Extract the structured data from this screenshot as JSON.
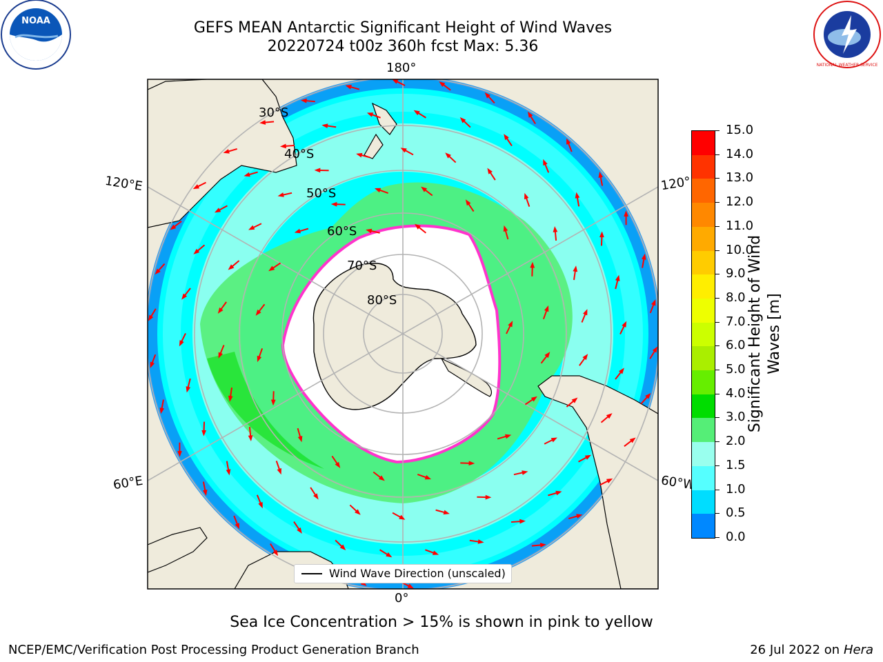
{
  "header": {
    "title_line1": "GEFS MEAN Antarctic Significant Height of Wind Waves",
    "title_line2": "20220724 t00z 360h fcst   Max: 5.36"
  },
  "logos": {
    "left_text": "NOAA",
    "right_text": "NATIONAL WEATHER SERVICE"
  },
  "map": {
    "longitude_labels": {
      "top": "180°",
      "bottom": "0°",
      "upper_left": "120°E",
      "lower_left": "60°E",
      "upper_right": "120°",
      "lower_right": "60°W"
    },
    "latitude_labels": [
      "30°S",
      "40°S",
      "50°S",
      "60°S",
      "70°S",
      "80°S"
    ],
    "legend_label": "Wind Wave Direction (unscaled)"
  },
  "colorbar": {
    "label_line1": "Significant Height of Wind",
    "label_line2": "Waves [m]",
    "ticks": [
      "15.0",
      "14.0",
      "13.0",
      "12.0",
      "11.0",
      "10.0",
      "9.0",
      "8.0",
      "7.0",
      "6.0",
      "5.0",
      "4.0",
      "3.0",
      "2.0",
      "1.5",
      "1.0",
      "0.5",
      "0.0"
    ],
    "colors": [
      "#ff0000",
      "#ff3300",
      "#ff6600",
      "#ff8800",
      "#ffaa00",
      "#ffcc00",
      "#ffee00",
      "#eeff00",
      "#ccff00",
      "#aaee00",
      "#66ee00",
      "#00dd00",
      "#55ee77",
      "#99ffee",
      "#55ffff",
      "#00ddff",
      "#0088ff",
      "#0000ff"
    ]
  },
  "notes": {
    "sea_ice": "Sea Ice Concentration > 15% is shown in pink to yellow"
  },
  "footer": {
    "left": "NCEP/EMC/Verification Post Processing Product Generation Branch",
    "right_prefix": "26 Jul 2022 on ",
    "right_host": "Hera"
  },
  "colors": {
    "land": "#efebdc",
    "ice": "#ffffff",
    "arrow": "#ff0000",
    "ice_edge": "#ff33cc"
  }
}
